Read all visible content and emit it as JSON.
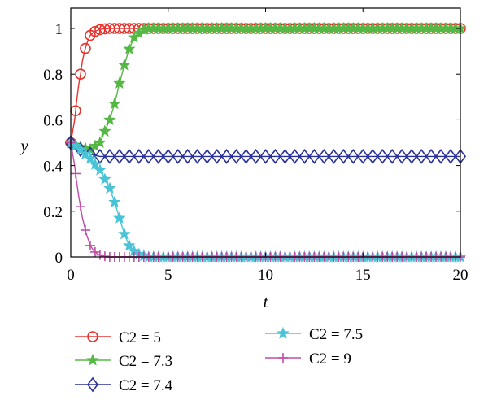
{
  "chart_data": {
    "type": "line",
    "xlabel": "t",
    "ylabel": "y",
    "xlim": [
      0,
      20
    ],
    "ylim": [
      0,
      1
    ],
    "xticks": [
      "0",
      "5",
      "10",
      "15",
      "20"
    ],
    "yticks": [
      "0",
      "0.2",
      "0.4",
      "0.6",
      "0.8",
      "1"
    ],
    "grid": false,
    "legend_placement": "below",
    "series": [
      {
        "name": "C2 = 5",
        "color": "#e8332d",
        "marker": "circle",
        "x": [
          0,
          0.1,
          0.2,
          0.3,
          0.4,
          0.5,
          0.6,
          0.8,
          1.0,
          1.2,
          1.4,
          1.6,
          1.8,
          2.0,
          2.5,
          3.0,
          4.0,
          5.0,
          7.5,
          10,
          12.5,
          15,
          17.5,
          20
        ],
        "y": [
          0.5,
          0.55,
          0.6,
          0.68,
          0.75,
          0.8,
          0.86,
          0.93,
          0.97,
          0.985,
          0.993,
          0.997,
          0.999,
          1.0,
          1.0,
          1.0,
          1.0,
          1.0,
          1.0,
          1.0,
          1.0,
          1.0,
          1.0,
          1.0
        ]
      },
      {
        "name": "C2 = 7.3",
        "color": "#55b845",
        "marker": "star",
        "x": [
          0,
          0.5,
          1.0,
          1.5,
          2.0,
          2.25,
          2.5,
          2.75,
          3.0,
          3.25,
          3.5,
          3.75,
          4.0,
          4.5,
          5.0,
          7.5,
          10,
          12.5,
          15,
          17.5,
          20
        ],
        "y": [
          0.5,
          0.48,
          0.47,
          0.5,
          0.6,
          0.67,
          0.76,
          0.84,
          0.91,
          0.96,
          0.98,
          0.995,
          1.0,
          1.0,
          1.0,
          1.0,
          1.0,
          1.0,
          1.0,
          1.0,
          1.0
        ]
      },
      {
        "name": "C2 = 7.4",
        "color": "#2a3199",
        "marker": "diamond",
        "x": [
          0,
          0.5,
          1.0,
          1.5,
          2.0,
          2.5,
          3.0,
          4.0,
          5.0,
          6.0,
          7.0,
          8.0,
          9.0,
          10,
          11,
          12,
          13,
          14,
          15,
          16,
          17,
          18,
          19,
          20
        ],
        "y": [
          0.5,
          0.47,
          0.45,
          0.44,
          0.44,
          0.44,
          0.44,
          0.44,
          0.44,
          0.44,
          0.44,
          0.44,
          0.44,
          0.44,
          0.44,
          0.44,
          0.44,
          0.44,
          0.44,
          0.44,
          0.44,
          0.44,
          0.44,
          0.44
        ]
      },
      {
        "name": "C2 = 7.5",
        "color": "#49c3d6",
        "marker": "star",
        "x": [
          0,
          0.5,
          1.0,
          1.5,
          2.0,
          2.25,
          2.5,
          2.75,
          3.0,
          3.25,
          3.5,
          3.75,
          4.0,
          5.0,
          7.5,
          10,
          12.5,
          15,
          17.5,
          20
        ],
        "y": [
          0.5,
          0.47,
          0.43,
          0.38,
          0.3,
          0.24,
          0.17,
          0.1,
          0.05,
          0.025,
          0.012,
          0.005,
          0.0,
          0.0,
          0.0,
          0.0,
          0.0,
          0.0,
          0.0,
          0.0
        ]
      },
      {
        "name": "C2 = 9",
        "color": "#c24ca8",
        "marker": "plus",
        "x": [
          0,
          0.1,
          0.2,
          0.3,
          0.4,
          0.5,
          0.6,
          0.8,
          1.0,
          1.2,
          1.4,
          1.6,
          1.8,
          2.0,
          2.5,
          3.0,
          5.0,
          7.5,
          10,
          12.5,
          15,
          17.5,
          20
        ],
        "y": [
          0.5,
          0.45,
          0.4,
          0.33,
          0.27,
          0.22,
          0.17,
          0.1,
          0.05,
          0.025,
          0.012,
          0.005,
          0.002,
          0.0,
          0.0,
          0.0,
          0.0,
          0.0,
          0.0,
          0.0,
          0.0,
          0.0,
          0.0
        ]
      }
    ]
  }
}
